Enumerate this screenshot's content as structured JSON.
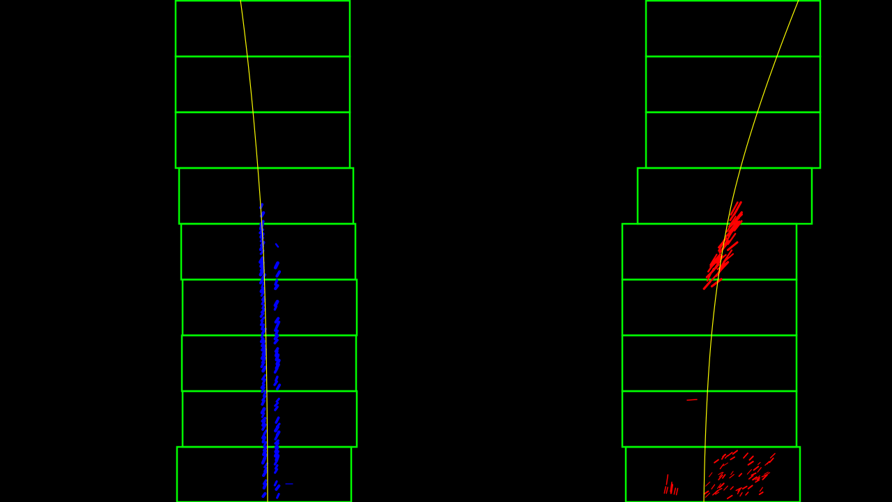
{
  "image": {
    "description_type": "lane-detection sliding-window visualization",
    "background": "#000000",
    "colors": {
      "window": "#00ff00",
      "left_lane_pixels": "#0000ff",
      "right_lane_pixels": "#ff0000",
      "fit_curve": "#ffff00"
    },
    "windows_per_lane": 9,
    "lanes": [
      "left",
      "right"
    ]
  }
}
